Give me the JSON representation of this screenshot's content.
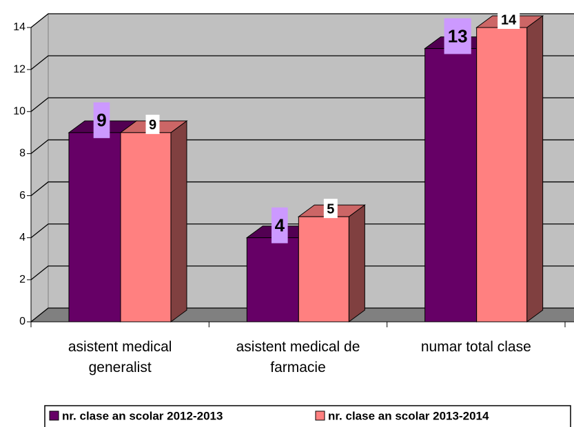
{
  "chart_data": {
    "type": "bar3d",
    "categories": [
      "asistent medical generalist",
      "asistent medical de farmacie",
      "numar total clase"
    ],
    "series": [
      {
        "name": "nr. clase an scolar 2012-2013",
        "color": "#660066",
        "values": [
          9,
          4,
          13
        ]
      },
      {
        "name": "nr. clase an scolar 2013-2014",
        "color": "#ff8080",
        "values": [
          9,
          5,
          14
        ]
      }
    ],
    "ylim": [
      0,
      14
    ],
    "yticks": [
      0,
      2,
      4,
      6,
      8,
      10,
      12,
      14
    ],
    "grid": true,
    "legend": "bottom"
  }
}
